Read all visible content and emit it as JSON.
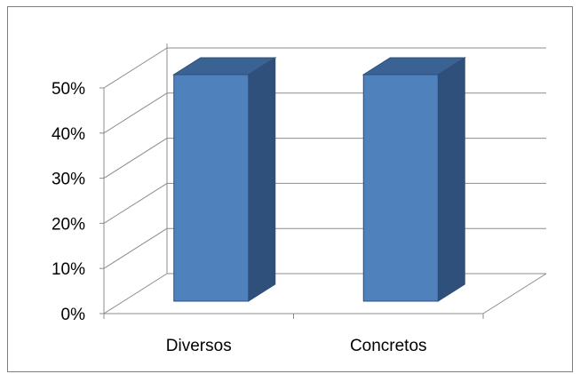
{
  "chart_data": {
    "type": "bar",
    "style": "3d-column",
    "categories": [
      "Diversos",
      "Concretos"
    ],
    "values": [
      50,
      50
    ],
    "value_format": "percent",
    "ylim": [
      0,
      50
    ],
    "yticks": [
      "0%",
      "10%",
      "20%",
      "30%",
      "40%",
      "50%"
    ],
    "title": "",
    "xlabel": "",
    "ylabel": "",
    "grid": true,
    "legend": "none",
    "colors": {
      "bar_front": "#4F81BD",
      "bar_side": "#2F507A",
      "bar_top": "#3A6394",
      "bar_edge": "#2E4F7A",
      "gridline": "#8C8C8C",
      "frame_border": "#7F7F7F"
    }
  }
}
